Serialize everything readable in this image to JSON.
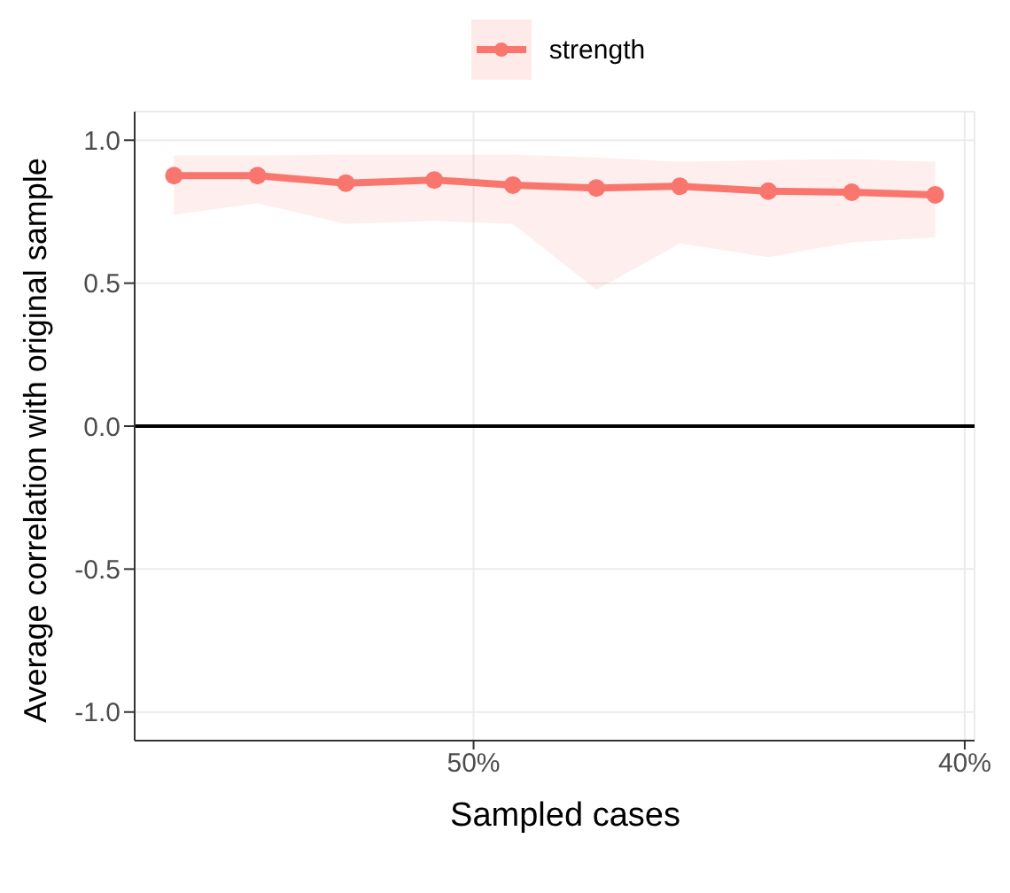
{
  "chart_data": {
    "type": "line",
    "xlabel": "Sampled cases",
    "ylabel": "Average correlation with original sample",
    "x": [
      56.1,
      54.4,
      52.6,
      50.8,
      49.2,
      47.5,
      45.8,
      44.0,
      42.3,
      40.6
    ],
    "series": [
      {
        "name": "strength",
        "color": "#f8766d",
        "values": [
          0.876,
          0.876,
          0.85,
          0.861,
          0.843,
          0.833,
          0.839,
          0.822,
          0.818,
          0.809
        ],
        "lower": [
          0.74,
          0.779,
          0.707,
          0.718,
          0.707,
          0.477,
          0.639,
          0.591,
          0.643,
          0.66
        ],
        "upper": [
          0.947,
          0.947,
          0.95,
          0.95,
          0.95,
          0.94,
          0.924,
          0.93,
          0.934,
          0.924
        ]
      }
    ],
    "xlim": [
      56.9,
      39.8
    ],
    "xticks": [
      {
        "value": 50,
        "label": "50%"
      },
      {
        "value": 40,
        "label": "40%"
      }
    ],
    "ylim": [
      -1.1,
      1.1
    ],
    "yticks": [
      {
        "value": -1,
        "label": "-1.0"
      },
      -0.5,
      {
        "value": 0,
        "label": "0.0"
      },
      0.5,
      {
        "value": 1,
        "label": "1.0"
      }
    ],
    "ref_lines": [
      {
        "axis": "y",
        "value": 0,
        "color": "#000000"
      }
    ],
    "grid": true,
    "legend": "top",
    "marker": "circle",
    "line_style": "solid"
  }
}
